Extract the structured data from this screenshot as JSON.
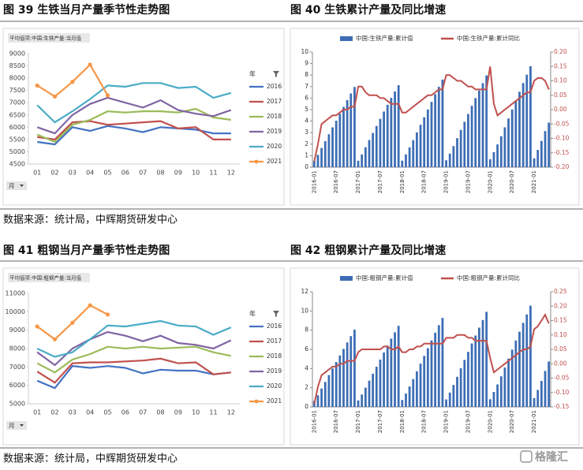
{
  "chart_data": [
    {
      "type": "line",
      "title": "图 39  生铁当月产量季节性走势图",
      "header": "平均值项:中国:生铁产量:当月值",
      "legend_title": "年",
      "x_field": "月",
      "categories": [
        "01",
        "02",
        "03",
        "04",
        "05",
        "06",
        "07",
        "08",
        "09",
        "10",
        "11",
        "12"
      ],
      "series": [
        {
          "name": "2016",
          "color": "#4472c4",
          "values": [
            5400,
            5300,
            6000,
            5850,
            6050,
            5950,
            5800,
            6000,
            5950,
            5900,
            5750,
            5750
          ]
        },
        {
          "name": "2017",
          "color": "#c0504d",
          "values": [
            5600,
            5500,
            6200,
            6250,
            6100,
            6150,
            6200,
            6250,
            5950,
            6000,
            5500,
            5500
          ]
        },
        {
          "name": "2018",
          "color": "#9bbb59",
          "values": [
            5700,
            5400,
            6100,
            6300,
            6650,
            6600,
            6650,
            6650,
            6600,
            6750,
            6400,
            6300
          ]
        },
        {
          "name": "2019",
          "color": "#8064a2",
          "values": [
            6000,
            5750,
            6500,
            6950,
            7200,
            7000,
            6800,
            7100,
            6700,
            6550,
            6450,
            6700
          ]
        },
        {
          "name": "2020",
          "color": "#4bacc6",
          "values": [
            6900,
            6200,
            6650,
            7150,
            7700,
            7650,
            7800,
            7800,
            7600,
            7650,
            7200,
            7400
          ]
        },
        {
          "name": "2021",
          "color": "#f79646",
          "marker": "circle",
          "values": [
            7700,
            7250,
            7850,
            8550,
            7300,
            null,
            null,
            null,
            null,
            null,
            null,
            null
          ]
        }
      ],
      "ylim": [
        4500,
        9000
      ],
      "yticks": [
        4500,
        5000,
        5500,
        6000,
        6500,
        7000,
        7500,
        8000,
        8500,
        9000
      ],
      "grid": false
    },
    {
      "type": "combo",
      "title": "图 40  生铁累计产量及同比增速",
      "categories": [
        "2016-01",
        null,
        null,
        null,
        null,
        null,
        "2016-07",
        null,
        null,
        null,
        null,
        null,
        "2017-01",
        null,
        null,
        null,
        null,
        null,
        "2017-07",
        null,
        null,
        null,
        null,
        null,
        "2018-01",
        null,
        null,
        null,
        null,
        null,
        "2018-07",
        null,
        null,
        null,
        null,
        null,
        "2019-01",
        null,
        null,
        null,
        null,
        null,
        "2019-07",
        null,
        null,
        null,
        null,
        null,
        "2020-01",
        null,
        null,
        null,
        null,
        null,
        "2020-07",
        null,
        null,
        null,
        null,
        null,
        "2021-01",
        null,
        null,
        null,
        null
      ],
      "series": [
        {
          "name": "中国:生铁产量:累计值",
          "type": "bar",
          "color": "#3d6db5",
          "values": [
            0.54,
            1.07,
            1.67,
            2.26,
            2.86,
            3.46,
            4.04,
            4.64,
            5.23,
            5.82,
            6.4,
            6.97,
            0.56,
            1.11,
            1.73,
            2.36,
            2.97,
            3.58,
            4.2,
            4.83,
            5.42,
            6.02,
            6.57,
            7.12,
            0.57,
            1.11,
            1.72,
            2.35,
            3.02,
            3.68,
            4.34,
            5.01,
            5.67,
            6.34,
            6.98,
            7.61,
            0.6,
            1.18,
            1.83,
            2.52,
            3.24,
            3.94,
            4.62,
            5.33,
            6.0,
            6.66,
            7.3,
            7.97,
            0.69,
            1.31,
            1.98,
            2.69,
            3.46,
            4.23,
            5.01,
            5.79,
            6.55,
            7.31,
            8.03,
            8.77,
            0.77,
            1.5,
            2.28,
            3.14,
            3.87
          ]
        },
        {
          "name": "中国:生铁产量:累计同比",
          "type": "line",
          "axis": "y2",
          "color": "#c0504d",
          "values": [
            -0.18,
            -0.12,
            -0.05,
            -0.04,
            -0.03,
            -0.02,
            -0.02,
            -0.01,
            0.0,
            0.0,
            0.01,
            0.01,
            0.08,
            0.08,
            0.06,
            0.05,
            0.05,
            0.05,
            0.04,
            0.04,
            0.03,
            0.02,
            0.02,
            0.02,
            -0.01,
            -0.01,
            0.0,
            0.01,
            0.02,
            0.03,
            0.04,
            0.05,
            0.05,
            0.06,
            0.07,
            0.07,
            0.12,
            0.12,
            0.11,
            0.1,
            0.1,
            0.09,
            0.08,
            0.08,
            0.07,
            0.07,
            0.07,
            0.07,
            0.15,
            0.02,
            -0.02,
            -0.01,
            0.0,
            0.01,
            0.02,
            0.03,
            0.04,
            0.05,
            0.06,
            0.06,
            0.1,
            0.11,
            0.11,
            0.1,
            0.07
          ]
        }
      ],
      "ylim": [
        0,
        10
      ],
      "yticks": [
        0,
        1,
        2,
        3,
        4,
        5,
        6,
        7,
        8,
        9,
        10
      ],
      "y2lim": [
        -0.2,
        0.2
      ],
      "y2ticks": [
        {
          "value": -0.2,
          "label": "-0.20"
        },
        {
          "value": -0.15,
          "label": "-0.15"
        },
        {
          "value": -0.1,
          "label": "-0.10"
        },
        {
          "value": -0.05,
          "label": "-0.05"
        },
        {
          "value": 0,
          "label": "0.00"
        },
        {
          "value": 0.05,
          "label": "0.05"
        },
        {
          "value": 0.1,
          "label": "0.10"
        },
        {
          "value": 0.15,
          "label": "0.15"
        },
        {
          "value": 0.2,
          "label": "0.20"
        }
      ],
      "grid": false
    },
    {
      "type": "line",
      "title": "图 41  粗钢当月产量季节性走势图",
      "header": "平均值项:中国:粗钢产量:当月值",
      "legend_title": "年",
      "x_field": "月",
      "categories": [
        "01",
        "02",
        "03",
        "04",
        "05",
        "06",
        "07",
        "08",
        "09",
        "10",
        "11",
        "12"
      ],
      "series": [
        {
          "name": "2016",
          "color": "#4472c4",
          "values": [
            6250,
            5850,
            7050,
            6950,
            7050,
            6950,
            6650,
            6850,
            6800,
            6800,
            6600,
            6700
          ]
        },
        {
          "name": "2017",
          "color": "#c0504d",
          "values": [
            6750,
            6150,
            7200,
            7250,
            7250,
            7300,
            7350,
            7450,
            7200,
            7250,
            6600,
            6700
          ]
        },
        {
          "name": "2018",
          "color": "#9bbb59",
          "values": [
            7200,
            6700,
            7400,
            7700,
            8100,
            8000,
            8100,
            8000,
            8050,
            8100,
            7800,
            7600
          ]
        },
        {
          "name": "2019",
          "color": "#8064a2",
          "values": [
            7800,
            7100,
            8000,
            8500,
            8900,
            8700,
            8400,
            8700,
            8300,
            8200,
            8000,
            8450
          ]
        },
        {
          "name": "2020",
          "color": "#4bacc6",
          "values": [
            8000,
            7550,
            7800,
            8500,
            9250,
            9200,
            9350,
            9500,
            9250,
            9200,
            8750,
            9150
          ]
        },
        {
          "name": "2021",
          "color": "#f79646",
          "marker": "circle",
          "values": [
            9200,
            8500,
            9400,
            10350,
            9850,
            null,
            null,
            null,
            null,
            null,
            null,
            null
          ]
        }
      ],
      "ylim": [
        5000,
        11000
      ],
      "yticks": [
        5000,
        6000,
        7000,
        8000,
        9000,
        10000,
        11000
      ],
      "grid": false
    },
    {
      "type": "combo",
      "title": "图 42  粗钢累计产量及同比增速",
      "categories": [
        "2016-01",
        null,
        null,
        null,
        null,
        null,
        "2016-07",
        null,
        null,
        null,
        null,
        null,
        "2017-01",
        null,
        null,
        null,
        null,
        null,
        "2017-07",
        null,
        null,
        null,
        null,
        null,
        "2018-01",
        null,
        null,
        null,
        null,
        null,
        "2018-07",
        null,
        null,
        null,
        null,
        null,
        "2019-01",
        null,
        null,
        null,
        null,
        null,
        "2019-07",
        null,
        null,
        null,
        null,
        null,
        "2020-01",
        null,
        null,
        null,
        null,
        null,
        "2020-07",
        null,
        null,
        null,
        null,
        null,
        "2021-01",
        null,
        null,
        null,
        null
      ],
      "series": [
        {
          "name": "中国:粗钢产量:累计值",
          "type": "bar",
          "color": "#3d6db5",
          "values": [
            0.63,
            1.21,
            1.92,
            2.61,
            3.32,
            4.01,
            4.68,
            5.36,
            6.04,
            6.72,
            7.38,
            8.05,
            0.68,
            1.29,
            2.01,
            2.74,
            3.46,
            4.19,
            4.93,
            5.67,
            6.39,
            7.12,
            7.78,
            8.45,
            0.72,
            1.39,
            2.13,
            2.9,
            3.71,
            4.51,
            5.32,
            6.12,
            6.93,
            7.74,
            8.52,
            9.28,
            0.78,
            1.49,
            2.29,
            3.14,
            4.03,
            4.9,
            5.74,
            6.61,
            7.44,
            8.26,
            9.06,
            9.91,
            0.8,
            1.56,
            2.34,
            3.19,
            4.11,
            5.03,
            5.97,
            6.92,
            7.84,
            8.76,
            9.64,
            10.55,
            0.92,
            1.77,
            2.71,
            3.75,
            4.73
          ]
        },
        {
          "name": "中国:粗钢产量:累计同比",
          "type": "line",
          "axis": "y2",
          "color": "#c0504d",
          "values": [
            -0.14,
            -0.08,
            -0.04,
            -0.03,
            -0.02,
            -0.01,
            -0.01,
            0.0,
            0.0,
            0.01,
            0.01,
            0.01,
            0.04,
            0.05,
            0.05,
            0.05,
            0.05,
            0.05,
            0.05,
            0.06,
            0.06,
            0.05,
            0.05,
            0.06,
            0.04,
            0.04,
            0.05,
            0.05,
            0.06,
            0.06,
            0.07,
            0.07,
            0.07,
            0.07,
            0.07,
            0.07,
            0.09,
            0.09,
            0.09,
            0.1,
            0.1,
            0.1,
            0.09,
            0.09,
            0.08,
            0.08,
            0.08,
            0.08,
            0.02,
            -0.03,
            -0.02,
            -0.01,
            0.0,
            0.01,
            0.02,
            0.03,
            0.04,
            0.05,
            0.05,
            0.06,
            0.12,
            0.13,
            0.15,
            0.17,
            0.14
          ]
        }
      ],
      "ylim": [
        0,
        12
      ],
      "yticks": [
        0,
        2,
        4,
        6,
        8,
        10,
        12
      ],
      "y2lim": [
        -0.15,
        0.25
      ],
      "y2ticks": [
        {
          "value": -0.15,
          "label": "-0.15"
        },
        {
          "value": -0.1,
          "label": "-0.10"
        },
        {
          "value": -0.05,
          "label": "-0.05"
        },
        {
          "value": 0,
          "label": "0.00"
        },
        {
          "value": 0.05,
          "label": "0.05"
        },
        {
          "value": 0.1,
          "label": "0.10"
        },
        {
          "value": 0.15,
          "label": "0.15"
        },
        {
          "value": 0.2,
          "label": "0.20"
        },
        {
          "value": 0.25,
          "label": "0.25"
        }
      ],
      "grid": false
    }
  ],
  "sources": [
    "数据来源：统计局，中辉期货研发中心",
    "数据来源：统计局，中辉期货研发中心"
  ],
  "watermark": "格隆汇"
}
